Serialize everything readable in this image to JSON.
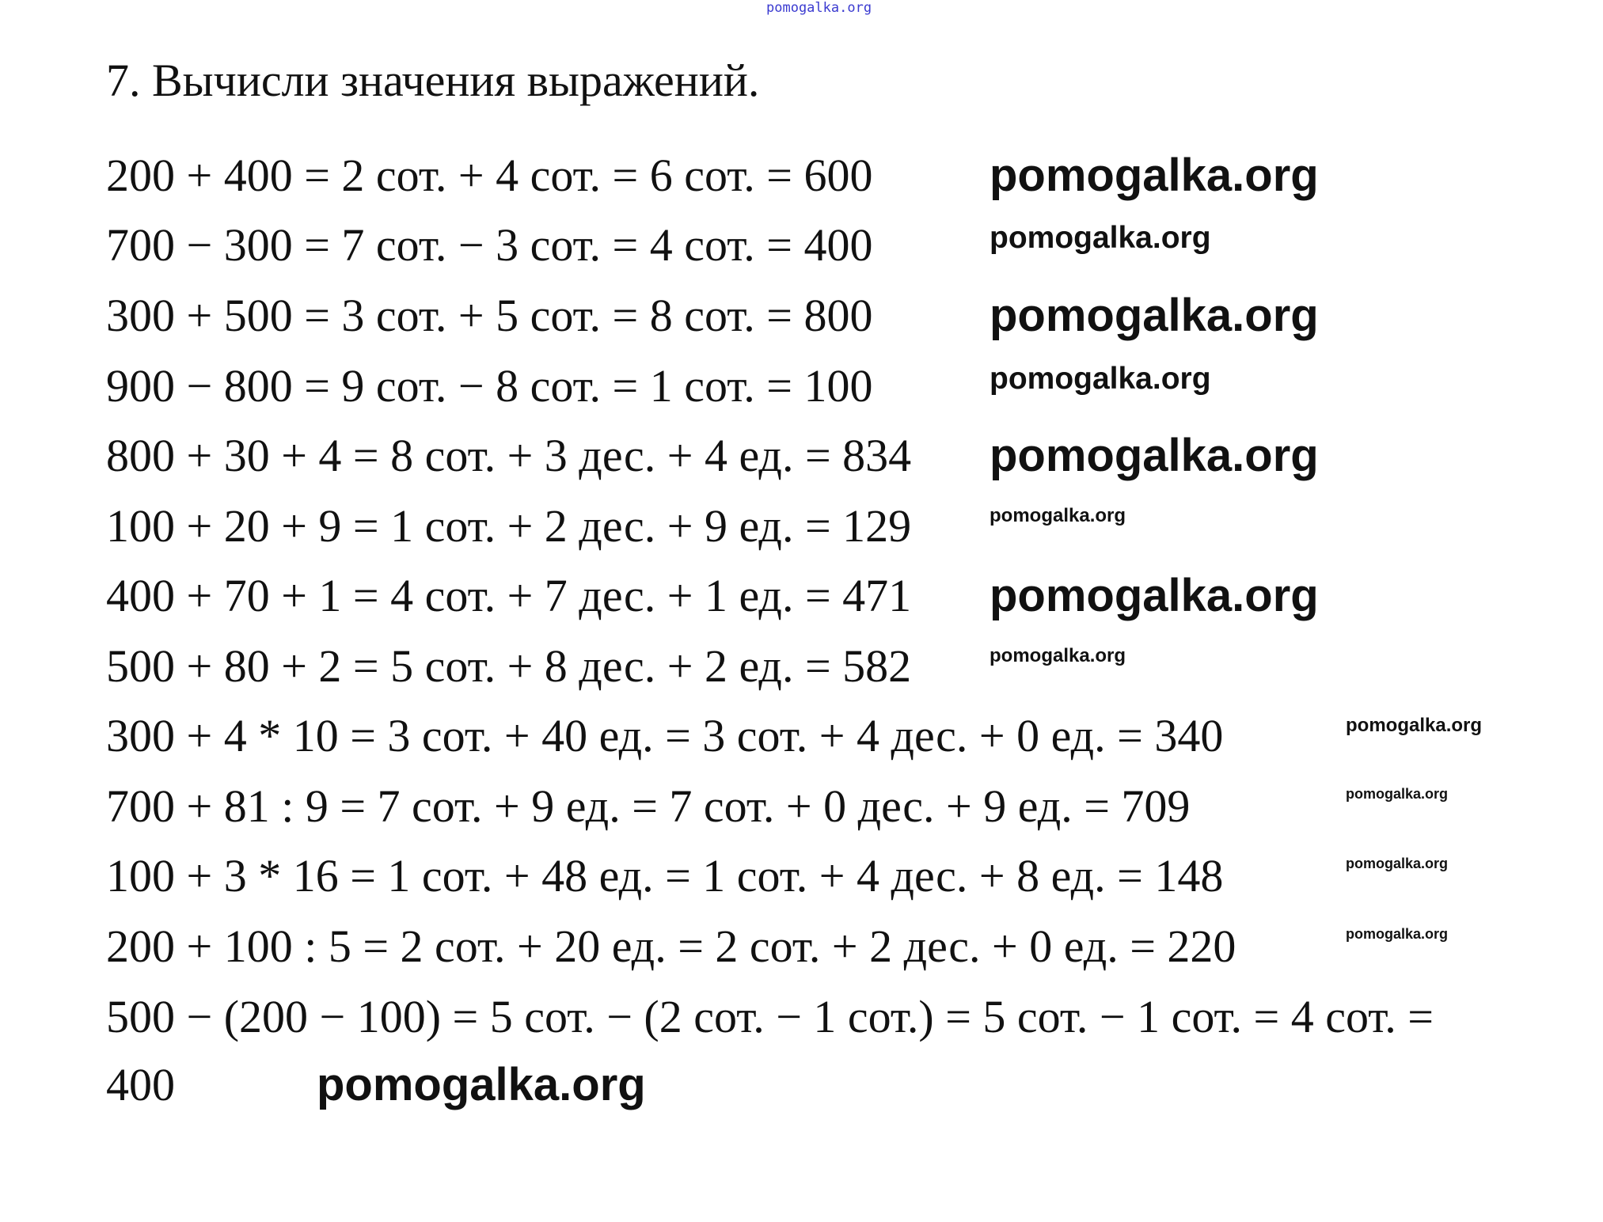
{
  "header_watermark": "pomogalka.org",
  "title": "7. Вычисли значения выражений.",
  "lines": [
    "200 + 400 = 2 сот. + 4 сот. = 6 сот. = 600",
    "700 − 300 = 7 сот. − 3 сот. = 4 сот. = 400",
    "300 + 500 = 3 сот. + 5 сот. = 8 сот. = 800",
    "900 − 800 = 9 сот. − 8 сот. = 1 сот. = 100",
    "800 + 30 + 4 = 8 сот. + 3 дес. + 4 ед. = 834",
    "100 + 20 + 9 = 1 сот. + 2 дес. + 9 ед. = 129",
    "400 + 70 + 1 = 4 сот. + 7 дес. + 1 ед. = 471",
    "500 + 80 + 2 = 5 сот. + 8 дес. + 2 ед. = 582",
    "300 + 4 * 10 = 3 сот. + 40 ед. = 3 сот. + 4 дес. + 0 ед. = 340",
    "700 + 81 : 9 = 7 сот. + 9 ед. = 7 сот. + 0 дес. + 9 ед. = 709",
    "100 + 3 * 16 = 1 сот. + 48 ед. = 1 сот. + 4 дес. + 8 ед. = 148",
    "200 + 100 : 5 = 2 сот. + 20 ед. = 2 сот. + 2 дес. + 0 ед. = 220",
    "500 − (200 − 100) = 5 сот. − (2 сот. − 1 сот.) = 5 сот. − 1 сот. = 4 сот. =",
    "400"
  ],
  "watermarks": [
    "pomogalka.org",
    "pomogalka.org",
    "pomogalka.org",
    "pomogalka.org",
    "pomogalka.org",
    "pomogalka.org",
    "pomogalka.org",
    "pomogalka.org",
    "pomogalka.org",
    "pomogalka.org",
    "pomogalka.org",
    "pomogalka.org",
    "pomogalka.org"
  ],
  "colors": {
    "text": "#111111",
    "header_watermark": "#3a3ad0"
  }
}
